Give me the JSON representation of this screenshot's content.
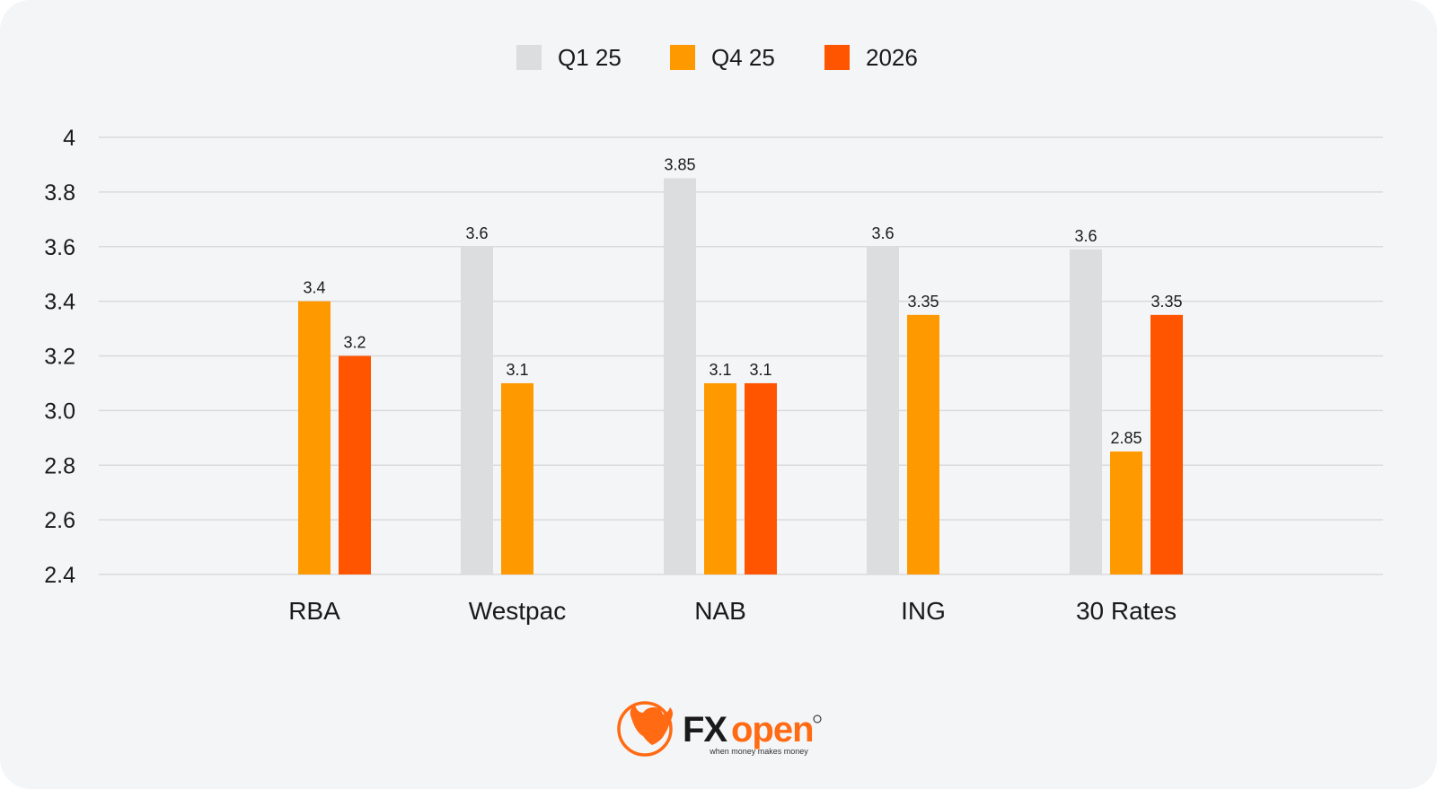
{
  "chart_data": {
    "type": "bar",
    "categories": [
      "RBA",
      "Westpac",
      "NAB",
      "ING",
      "30 Rates"
    ],
    "series": [
      {
        "name": "Q1 25",
        "color": "#dcdddf",
        "values": [
          null,
          3.6,
          3.85,
          3.6,
          3.59
        ],
        "labels": [
          "",
          "3.6",
          "3.85",
          "3.6",
          "3.6"
        ]
      },
      {
        "name": "Q4 25",
        "color": "#ff9900",
        "values": [
          3.4,
          3.1,
          3.1,
          3.35,
          2.85
        ],
        "labels": [
          "3.4",
          "3.1",
          "3.1",
          "3.35",
          "2.85"
        ]
      },
      {
        "name": "2026",
        "color": "#ff5500",
        "values": [
          3.2,
          null,
          3.1,
          null,
          3.35
        ],
        "labels": [
          "3.2",
          "",
          "3.1",
          "",
          "3.35"
        ]
      }
    ],
    "yticks": [
      "2.4",
      "2.6",
      "2.8",
      "3.0",
      "3.2",
      "3.4",
      "3.6",
      "3.8",
      "4"
    ],
    "ylim": [
      2.4,
      4
    ],
    "grid": true,
    "legend_position": "top-center"
  },
  "brand": {
    "name": "FXopen",
    "tagline": "when money makes money",
    "color": "#ff6a13",
    "icon": "bull-logo-icon"
  }
}
